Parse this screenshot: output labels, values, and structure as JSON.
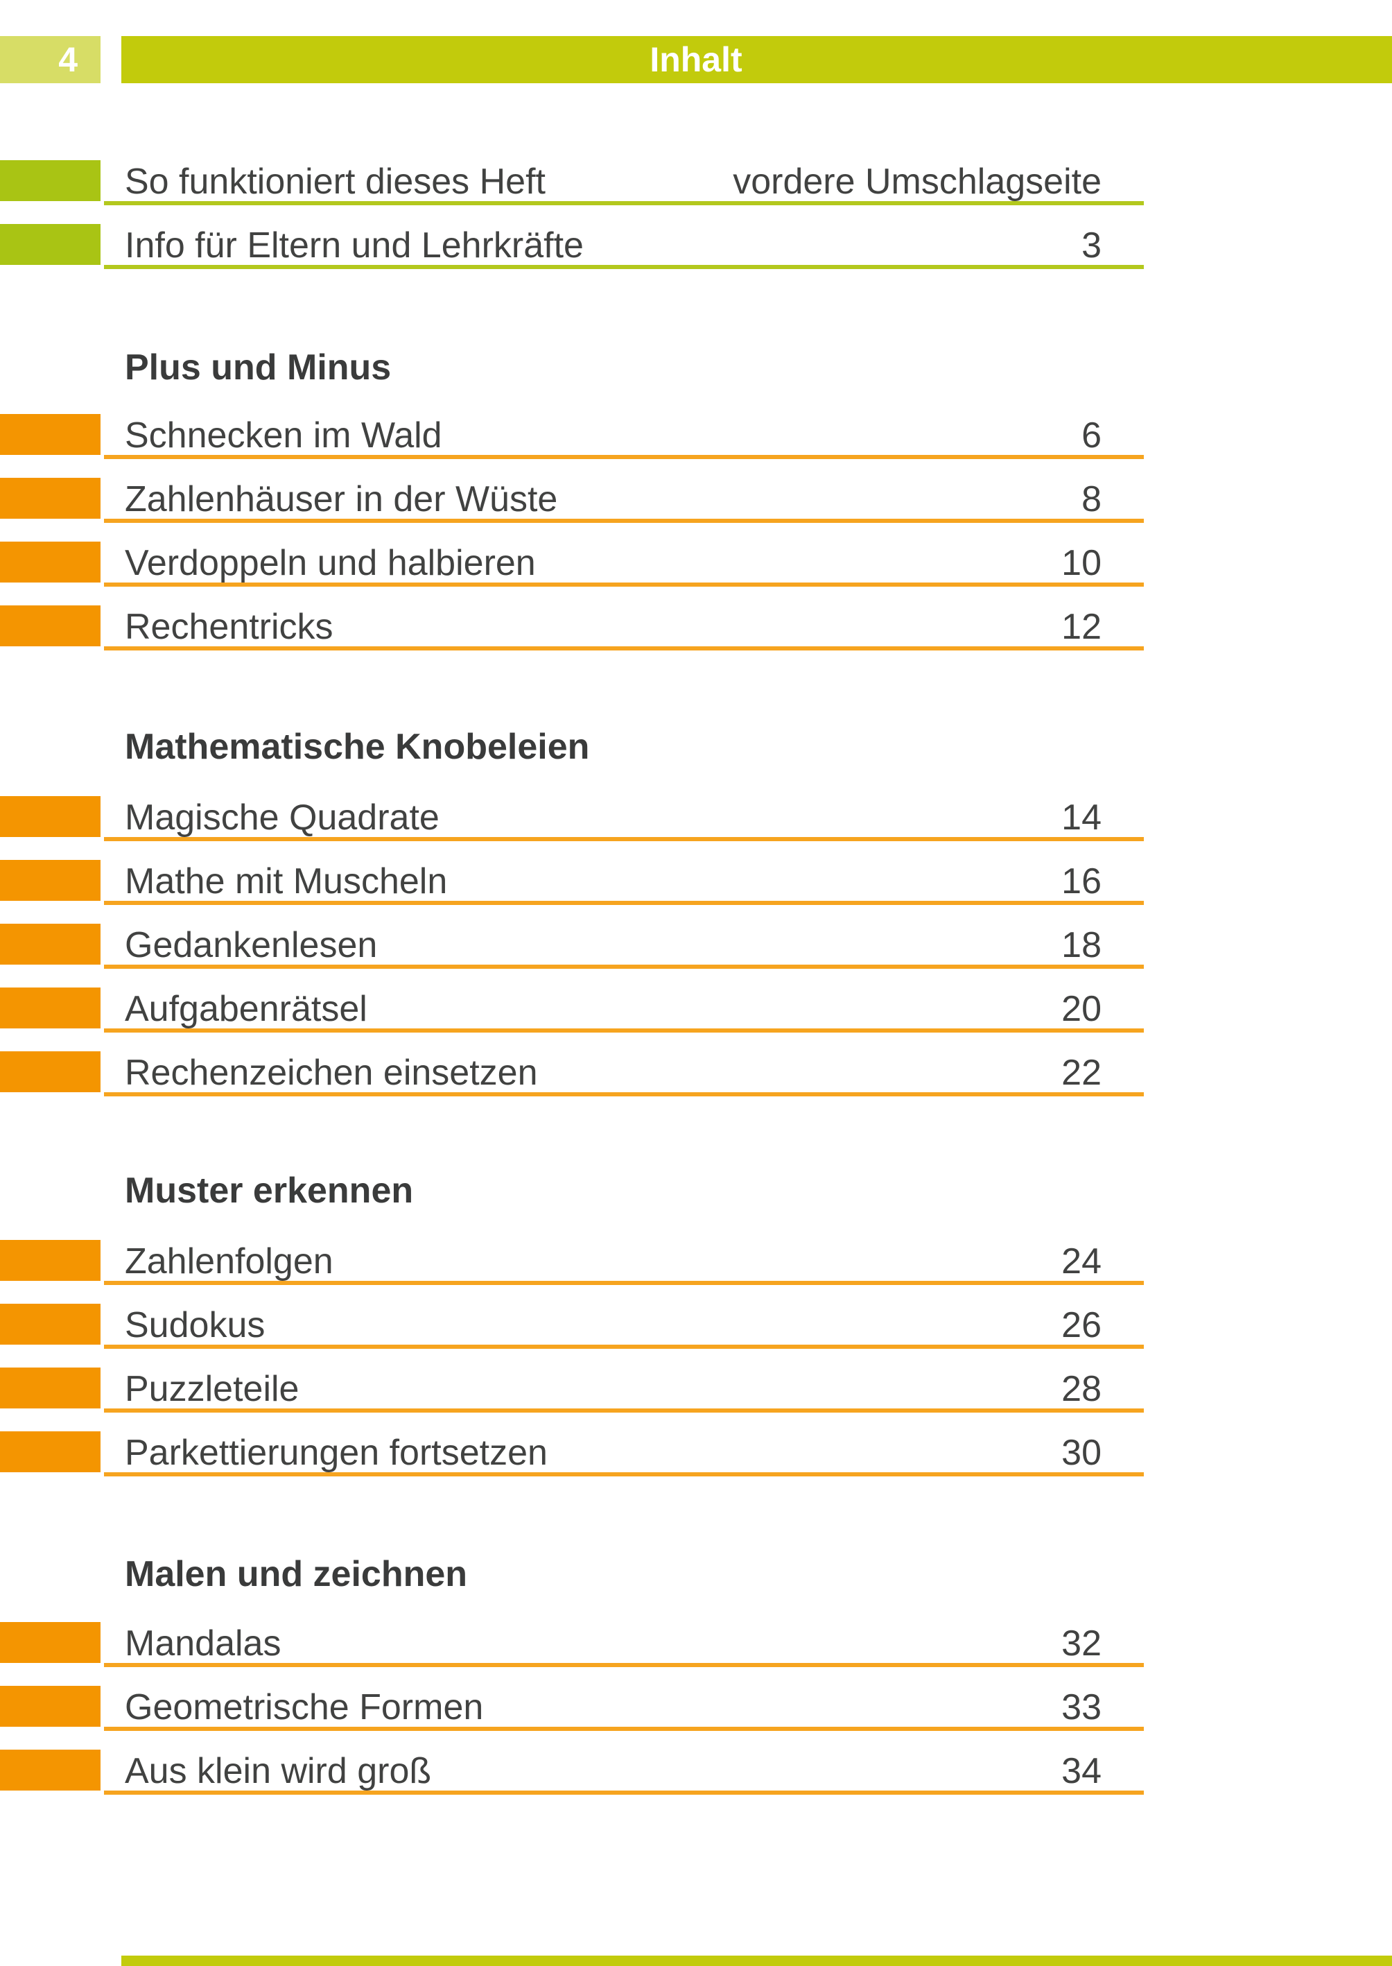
{
  "page_badge": "4",
  "header": {
    "title": "Inhalt"
  },
  "toc": {
    "intro": {
      "items": [
        {
          "label": "So funktioniert dieses Heft",
          "page": "vordere Umschlagseite"
        },
        {
          "label": "Info für Eltern und Lehrkräfte",
          "page": "3"
        }
      ]
    },
    "sections": [
      {
        "title": "Plus und Minus",
        "items": [
          {
            "label": "Schnecken im Wald",
            "page": "6"
          },
          {
            "label": "Zahlenhäuser in der Wüste",
            "page": "8"
          },
          {
            "label": "Verdoppeln und halbieren",
            "page": "10"
          },
          {
            "label": "Rechentricks",
            "page": "12"
          }
        ]
      },
      {
        "title": "Mathematische Knobeleien",
        "items": [
          {
            "label": "Magische Quadrate",
            "page": "14"
          },
          {
            "label": "Mathe mit Muscheln",
            "page": "16"
          },
          {
            "label": "Gedankenlesen",
            "page": "18"
          },
          {
            "label": "Aufgabenrätsel",
            "page": "20"
          },
          {
            "label": "Rechenzeichen einsetzen",
            "page": "22"
          }
        ]
      },
      {
        "title": "Muster erkennen",
        "items": [
          {
            "label": "Zahlenfolgen",
            "page": "24"
          },
          {
            "label": "Sudokus",
            "page": "26"
          },
          {
            "label": "Puzzleteile",
            "page": "28"
          },
          {
            "label": "Parkettierungen fortsetzen",
            "page": "30"
          }
        ]
      },
      {
        "title": "Malen und zeichnen",
        "items": [
          {
            "label": "Mandalas",
            "page": "32"
          },
          {
            "label": "Geometrische Formen",
            "page": "33"
          },
          {
            "label": "Aus klein wird groß",
            "page": "34"
          }
        ]
      }
    ]
  },
  "colors": {
    "header_bar": "#c2cb0c",
    "header_badge": "#d7dd66",
    "green_tab": "#a9c414",
    "green_line": "#b3c81d",
    "orange_tab": "#f49501",
    "orange_line": "#f6a41f",
    "text": "#414241",
    "heading_text": "#3a3b3b"
  }
}
